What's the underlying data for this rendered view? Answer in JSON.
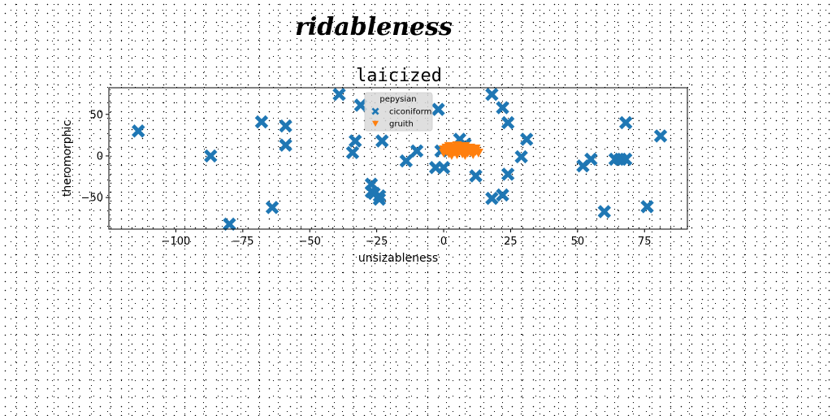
{
  "figure": {
    "title": "ridableness"
  },
  "chart_data": {
    "type": "scatter",
    "title": "laicized",
    "xlabel": "unsizableness",
    "ylabel": "theromorphic",
    "xlim": [
      -125,
      91
    ],
    "ylim": [
      -88,
      82
    ],
    "xticks": [
      -100,
      -75,
      -50,
      -25,
      0,
      25,
      50,
      75
    ],
    "xtick_labels": [
      "−100",
      "−75",
      "−50",
      "−25",
      "0",
      "25",
      "50",
      "75"
    ],
    "yticks": [
      -50,
      0,
      50
    ],
    "ytick_labels": [
      "−50",
      "0",
      "50"
    ],
    "grid": false,
    "legend": {
      "title": "pepysian",
      "placement": "top-center"
    },
    "series": [
      {
        "name": "ciconiform",
        "marker": "X",
        "color": "#1f77b4",
        "points": [
          [
            -114,
            30
          ],
          [
            -87,
            0
          ],
          [
            -80,
            -82
          ],
          [
            -68,
            41
          ],
          [
            -64,
            -62
          ],
          [
            -59,
            36
          ],
          [
            -59,
            13
          ],
          [
            -39,
            74
          ],
          [
            -34,
            4
          ],
          [
            -33,
            18
          ],
          [
            -31,
            61
          ],
          [
            -27,
            -34
          ],
          [
            -27,
            -43
          ],
          [
            -26,
            -45
          ],
          [
            -24,
            -48
          ],
          [
            -24,
            -52
          ],
          [
            -23,
            18
          ],
          [
            -14,
            -6
          ],
          [
            -10,
            6
          ],
          [
            -3,
            -14
          ],
          [
            -2,
            56
          ],
          [
            -1,
            6
          ],
          [
            0,
            -14
          ],
          [
            6,
            20
          ],
          [
            8,
            14
          ],
          [
            12,
            -24
          ],
          [
            18,
            74
          ],
          [
            18,
            -51
          ],
          [
            22,
            -47
          ],
          [
            22,
            58
          ],
          [
            24,
            40
          ],
          [
            24,
            -22
          ],
          [
            29,
            -1
          ],
          [
            31,
            20
          ],
          [
            52,
            -12
          ],
          [
            55,
            -4
          ],
          [
            60,
            -67
          ],
          [
            64,
            -4
          ],
          [
            66,
            -4
          ],
          [
            68,
            -4
          ],
          [
            68,
            40
          ],
          [
            76,
            -61
          ],
          [
            81,
            24
          ]
        ]
      },
      {
        "name": "gruith",
        "marker": "v",
        "color": "#ff7f0e",
        "points": [
          [
            0,
            8
          ],
          [
            0,
            4
          ],
          [
            1,
            10
          ],
          [
            1,
            6
          ],
          [
            2,
            3
          ],
          [
            2,
            12
          ],
          [
            3,
            7
          ],
          [
            3,
            1
          ],
          [
            4,
            10
          ],
          [
            4,
            5
          ],
          [
            5,
            13
          ],
          [
            5,
            8
          ],
          [
            5,
            2
          ],
          [
            6,
            6
          ],
          [
            6,
            11
          ],
          [
            7,
            3
          ],
          [
            7,
            9
          ],
          [
            8,
            6
          ],
          [
            8,
            12
          ],
          [
            8,
            1
          ],
          [
            9,
            7
          ],
          [
            9,
            4
          ],
          [
            10,
            10
          ],
          [
            10,
            5
          ],
          [
            11,
            8
          ],
          [
            11,
            2
          ],
          [
            12,
            6
          ],
          [
            12,
            9
          ],
          [
            13,
            4
          ]
        ]
      }
    ]
  }
}
